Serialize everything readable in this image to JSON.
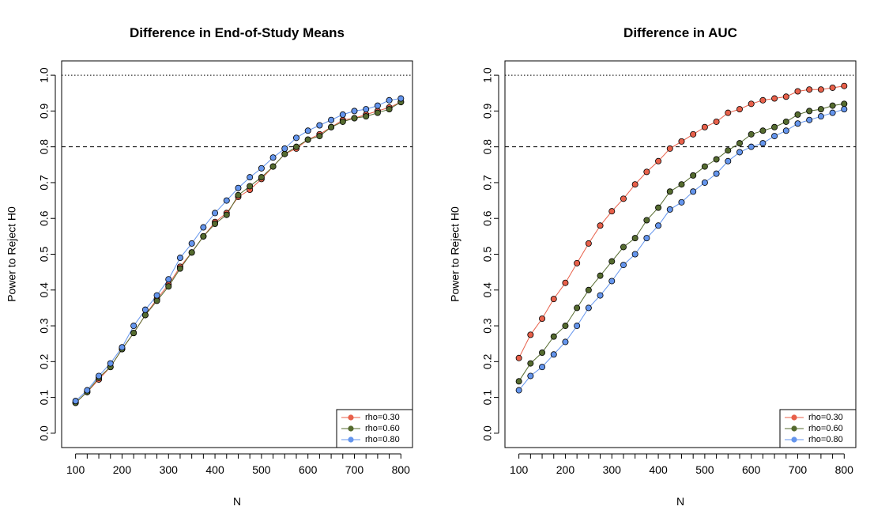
{
  "chart_data": [
    {
      "type": "line",
      "title": "Difference in End-of-Study Means",
      "xlabel": "N",
      "ylabel": "Power to Reject H0",
      "xlim": [
        70,
        825
      ],
      "ylim": [
        -0.04,
        1.04
      ],
      "xticks": [
        "100",
        "200",
        "300",
        "400",
        "500",
        "600",
        "700",
        "800"
      ],
      "yticks": [
        "0.0",
        "0.1",
        "0.2",
        "0.3",
        "0.4",
        "0.5",
        "0.6",
        "0.7",
        "0.8",
        "0.9",
        "1.0"
      ],
      "reference_lines": [
        {
          "y": 1.0,
          "style": "dotted"
        },
        {
          "y": 0.8,
          "style": "dashed"
        }
      ],
      "legend_position": "bottom-right",
      "x": [
        100,
        125,
        150,
        175,
        200,
        225,
        250,
        275,
        300,
        325,
        350,
        375,
        400,
        425,
        450,
        475,
        500,
        525,
        550,
        575,
        600,
        625,
        650,
        675,
        700,
        725,
        750,
        775,
        800
      ],
      "series": [
        {
          "name": "rho=0.30",
          "color": "#E8604A",
          "values": [
            0.085,
            0.115,
            0.15,
            0.185,
            0.235,
            0.28,
            0.33,
            0.375,
            0.415,
            0.465,
            0.505,
            0.55,
            0.59,
            0.615,
            0.66,
            0.68,
            0.71,
            0.745,
            0.78,
            0.795,
            0.82,
            0.835,
            0.855,
            0.875,
            0.88,
            0.89,
            0.9,
            0.91,
            0.925
          ]
        },
        {
          "name": "rho=0.60",
          "color": "#556B2F",
          "values": [
            0.085,
            0.115,
            0.155,
            0.185,
            0.235,
            0.28,
            0.33,
            0.37,
            0.41,
            0.46,
            0.505,
            0.55,
            0.585,
            0.61,
            0.665,
            0.69,
            0.715,
            0.745,
            0.78,
            0.8,
            0.82,
            0.83,
            0.855,
            0.87,
            0.88,
            0.885,
            0.895,
            0.905,
            0.925
          ]
        },
        {
          "name": "rho=0.80",
          "color": "#6495ED",
          "values": [
            0.09,
            0.12,
            0.16,
            0.195,
            0.24,
            0.3,
            0.345,
            0.385,
            0.43,
            0.49,
            0.53,
            0.575,
            0.615,
            0.65,
            0.685,
            0.715,
            0.74,
            0.77,
            0.795,
            0.825,
            0.845,
            0.86,
            0.875,
            0.89,
            0.9,
            0.905,
            0.915,
            0.93,
            0.935
          ]
        }
      ]
    },
    {
      "type": "line",
      "title": "Difference in AUC",
      "xlabel": "N",
      "ylabel": "Power to Reject H0",
      "xlim": [
        70,
        825
      ],
      "ylim": [
        -0.04,
        1.04
      ],
      "xticks": [
        "100",
        "200",
        "300",
        "400",
        "500",
        "600",
        "700",
        "800"
      ],
      "yticks": [
        "0.0",
        "0.1",
        "0.2",
        "0.3",
        "0.4",
        "0.5",
        "0.6",
        "0.7",
        "0.8",
        "0.9",
        "1.0"
      ],
      "reference_lines": [
        {
          "y": 1.0,
          "style": "dotted"
        },
        {
          "y": 0.8,
          "style": "dashed"
        }
      ],
      "legend_position": "bottom-right",
      "x": [
        100,
        125,
        150,
        175,
        200,
        225,
        250,
        275,
        300,
        325,
        350,
        375,
        400,
        425,
        450,
        475,
        500,
        525,
        550,
        575,
        600,
        625,
        650,
        675,
        700,
        725,
        750,
        775,
        800
      ],
      "series": [
        {
          "name": "rho=0.30",
          "color": "#E8604A",
          "values": [
            0.21,
            0.275,
            0.32,
            0.375,
            0.42,
            0.475,
            0.53,
            0.58,
            0.62,
            0.655,
            0.695,
            0.73,
            0.76,
            0.795,
            0.815,
            0.835,
            0.855,
            0.87,
            0.895,
            0.905,
            0.92,
            0.93,
            0.935,
            0.94,
            0.955,
            0.96,
            0.96,
            0.965,
            0.97
          ]
        },
        {
          "name": "rho=0.60",
          "color": "#556B2F",
          "values": [
            0.145,
            0.195,
            0.225,
            0.27,
            0.3,
            0.35,
            0.4,
            0.44,
            0.48,
            0.52,
            0.545,
            0.595,
            0.63,
            0.675,
            0.695,
            0.72,
            0.745,
            0.765,
            0.79,
            0.81,
            0.835,
            0.845,
            0.855,
            0.87,
            0.89,
            0.9,
            0.905,
            0.915,
            0.92
          ]
        },
        {
          "name": "rho=0.80",
          "color": "#6495ED",
          "values": [
            0.12,
            0.16,
            0.185,
            0.22,
            0.255,
            0.3,
            0.35,
            0.385,
            0.425,
            0.47,
            0.5,
            0.545,
            0.58,
            0.625,
            0.645,
            0.675,
            0.7,
            0.725,
            0.76,
            0.785,
            0.8,
            0.81,
            0.83,
            0.845,
            0.865,
            0.875,
            0.885,
            0.895,
            0.905
          ]
        }
      ]
    }
  ]
}
